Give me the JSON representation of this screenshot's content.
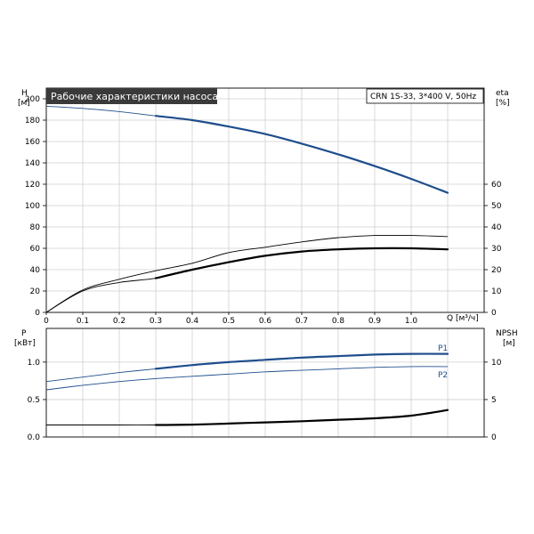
{
  "title": "Рабочие характеристики насоса",
  "model": "CRN 1S-33, 3*400 V, 50Hz",
  "colors": {
    "blue": "#1f4e8c",
    "black": "#000000",
    "title_bg": "#3a3a3a",
    "grid": "#cfcfcf"
  },
  "chart_data": [
    {
      "type": "line",
      "name": "performance",
      "x_unit_label": "Q [м³/ч]",
      "xlim": [
        0,
        1.2
      ],
      "x_ticks": [
        "0",
        "0.1",
        "0.2",
        "0.3",
        "0.4",
        "0.5",
        "0.6",
        "0.7",
        "0.8",
        "0.9",
        "1.0"
      ],
      "left_axis": {
        "label": "H",
        "unit": "[м]",
        "ylim": [
          0,
          210
        ],
        "ticks": [
          "0",
          "20",
          "40",
          "60",
          "80",
          "100",
          "120",
          "140",
          "160",
          "180",
          "200"
        ]
      },
      "right_axis": {
        "label": "eta",
        "unit": "[%]",
        "ylim": [
          0,
          105
        ],
        "ticks": [
          "0",
          "10",
          "20",
          "30",
          "40",
          "50",
          "60"
        ]
      },
      "grid": true,
      "series": [
        {
          "key": "H",
          "axis": "left",
          "color": "#1f4e8c",
          "x": [
            0,
            0.1,
            0.2,
            0.3,
            0.4,
            0.5,
            0.6,
            0.7,
            0.8,
            0.9,
            1.0,
            1.1
          ],
          "y": [
            193,
            191,
            188,
            184,
            180,
            174,
            167,
            158,
            148,
            137,
            125,
            112
          ],
          "bold_from": 0.3
        },
        {
          "key": "eta_thin",
          "axis": "right",
          "color": "#000000",
          "x": [
            0,
            0.1,
            0.2,
            0.3,
            0.4,
            0.5,
            0.6,
            0.7,
            0.8,
            0.9,
            1.0,
            1.1
          ],
          "y": [
            0,
            10.5,
            15.5,
            19.5,
            23,
            28,
            30.5,
            33,
            35,
            36,
            36,
            35.5
          ]
        },
        {
          "key": "eta_bold",
          "axis": "right",
          "color": "#000000",
          "x": [
            0,
            0.1,
            0.2,
            0.3,
            0.4,
            0.5,
            0.6,
            0.7,
            0.8,
            0.9,
            1.0,
            1.1
          ],
          "y": [
            0,
            10,
            14,
            16,
            20,
            23.5,
            26.5,
            28.5,
            29.5,
            30,
            30,
            29.5
          ],
          "bold_from": 0.3
        }
      ]
    },
    {
      "type": "line",
      "name": "power-npsh",
      "xlim": [
        0,
        1.2
      ],
      "left_axis": {
        "label": "P",
        "unit": "[кВт]",
        "ylim": [
          0,
          1.45
        ],
        "ticks": [
          "0.0",
          "0.5",
          "1.0"
        ]
      },
      "right_axis": {
        "label": "NPSH",
        "unit": "[м]",
        "ylim": [
          0,
          14.5
        ],
        "ticks": [
          "0",
          "5",
          "10"
        ]
      },
      "grid": true,
      "series": [
        {
          "key": "P1",
          "name": "P1",
          "axis": "left",
          "color": "#1f4e8c",
          "x": [
            0,
            0.1,
            0.2,
            0.3,
            0.4,
            0.5,
            0.6,
            0.7,
            0.8,
            0.9,
            1.0,
            1.1
          ],
          "y": [
            0.74,
            0.8,
            0.86,
            0.91,
            0.96,
            1.0,
            1.03,
            1.06,
            1.08,
            1.1,
            1.11,
            1.11
          ],
          "bold_from": 0.3
        },
        {
          "key": "P2",
          "name": "P2",
          "axis": "left",
          "color": "#1f4e8c",
          "x": [
            0,
            0.1,
            0.2,
            0.3,
            0.4,
            0.5,
            0.6,
            0.7,
            0.8,
            0.9,
            1.0,
            1.1
          ],
          "y": [
            0.63,
            0.69,
            0.74,
            0.78,
            0.81,
            0.84,
            0.87,
            0.89,
            0.91,
            0.93,
            0.94,
            0.94
          ]
        },
        {
          "key": "NPSH",
          "axis": "right",
          "color": "#000000",
          "x": [
            0,
            0.1,
            0.2,
            0.3,
            0.4,
            0.5,
            0.6,
            0.7,
            0.8,
            0.9,
            1.0,
            1.1
          ],
          "y": [
            1.6,
            1.6,
            1.6,
            1.6,
            1.65,
            1.8,
            1.95,
            2.1,
            2.3,
            2.5,
            2.85,
            3.6
          ],
          "bold_from": 0.3
        }
      ]
    }
  ]
}
